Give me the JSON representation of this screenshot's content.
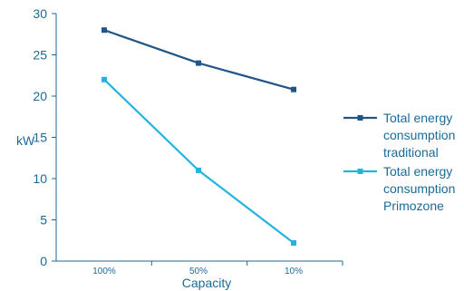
{
  "chart_data": {
    "type": "line",
    "categories": [
      "100%",
      "50%",
      "10%"
    ],
    "xlabel": "Capacity",
    "ylabel": "kW",
    "ylim": [
      0,
      30
    ],
    "yticks": [
      "0",
      "5",
      "10",
      "15",
      "20",
      "25",
      "30"
    ],
    "grid": false,
    "legend_position": "right",
    "series": [
      {
        "name_lines": [
          "Total energy",
          "consumption",
          "traditional"
        ],
        "values": [
          28,
          24,
          20.8
        ],
        "color": "#1f5587"
      },
      {
        "name_lines": [
          "Total energy",
          "consumption",
          "Primozone"
        ],
        "values": [
          22,
          11,
          2.2
        ],
        "color": "#21b4e0"
      }
    ]
  }
}
